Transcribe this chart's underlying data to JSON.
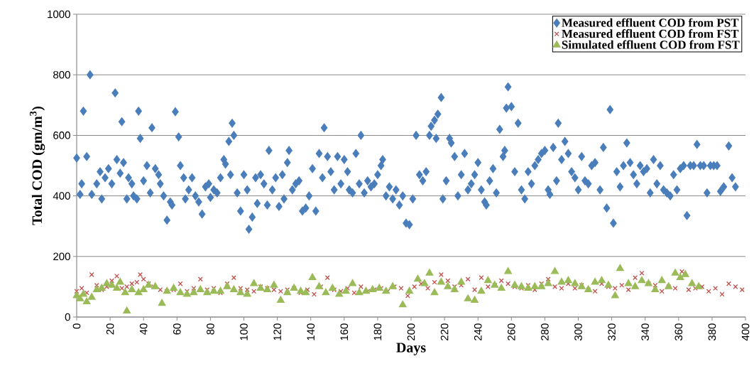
{
  "chart_data": {
    "type": "scatter",
    "xlabel": "Days",
    "ylabel": "Total COD (gm/m$^{3}$)",
    "xlim": [
      0,
      400
    ],
    "xticks": [
      0,
      20,
      40,
      60,
      80,
      100,
      120,
      140,
      160,
      180,
      200,
      220,
      240,
      260,
      280,
      300,
      320,
      340,
      360,
      380,
      400
    ],
    "ylim": [
      0,
      1000
    ],
    "yticks": [
      0,
      200,
      400,
      600,
      800,
      1000
    ],
    "grid": "y",
    "legend": "top right",
    "series": [
      {
        "name": "Measured effluent COD from PST",
        "color": "#4a7ebb",
        "marker": "diamond",
        "x": [
          0,
          2,
          3,
          4,
          6,
          8,
          9,
          12,
          14,
          15,
          17,
          19,
          21,
          23,
          24,
          26,
          27,
          28,
          30,
          31,
          33,
          34,
          36,
          37,
          38,
          40,
          42,
          44,
          45,
          47,
          49,
          50,
          52,
          54,
          56,
          57,
          59,
          61,
          62,
          64,
          65,
          67,
          69,
          71,
          73,
          75,
          77,
          79,
          80,
          82,
          84,
          86,
          88,
          89,
          91,
          92,
          93,
          94,
          96,
          98,
          100,
          102,
          103,
          105,
          107,
          108,
          110,
          112,
          114,
          115,
          117,
          119,
          121,
          123,
          124,
          126,
          127,
          129,
          131,
          133,
          135,
          137,
          139,
          141,
          143,
          145,
          147,
          148,
          150,
          152,
          154,
          156,
          158,
          160,
          162,
          163,
          165,
          167,
          169,
          170,
          172,
          174,
          176,
          178,
          180,
          182,
          183,
          185,
          187,
          189,
          191,
          193,
          195,
          197,
          199,
          201,
          203,
          205,
          207,
          209,
          211,
          212,
          214,
          215,
          216,
          218,
          219,
          221,
          223,
          224,
          226,
          228,
          230,
          232,
          234,
          236,
          238,
          240,
          242,
          244,
          245,
          247,
          249,
          251,
          253,
          255,
          256,
          257,
          258,
          260,
          262,
          264,
          266,
          268,
          270,
          272,
          274,
          276,
          278,
          280,
          282,
          283,
          285,
          287,
          288,
          290,
          292,
          294,
          296,
          298,
          300,
          302,
          304,
          306,
          308,
          310,
          313,
          315,
          317,
          319,
          321,
          323,
          325,
          327,
          329,
          331,
          333,
          335,
          337,
          339,
          341,
          343,
          345,
          347,
          349,
          351,
          353,
          355,
          357,
          359,
          361,
          363,
          365,
          367,
          369,
          371,
          373,
          375,
          377,
          379,
          381,
          383,
          385,
          387,
          390,
          392,
          394
        ],
        "values": [
          525,
          405,
          440,
          680,
          530,
          800,
          405,
          440,
          480,
          390,
          460,
          490,
          440,
          740,
          520,
          475,
          645,
          510,
          390,
          460,
          440,
          400,
          390,
          680,
          590,
          450,
          500,
          410,
          625,
          490,
          470,
          440,
          400,
          320,
          380,
          370,
          678,
          595,
          500,
          460,
          390,
          420,
          460,
          400,
          380,
          340,
          430,
          440,
          395,
          420,
          410,
          460,
          520,
          505,
          580,
          470,
          640,
          600,
          410,
          350,
          470,
          420,
          290,
          330,
          460,
          375,
          470,
          440,
          370,
          550,
          420,
          460,
          365,
          470,
          390,
          510,
          550,
          420,
          440,
          450,
          350,
          360,
          400,
          490,
          350,
          540,
          460,
          625,
          530,
          480,
          420,
          530,
          440,
          520,
          480,
          420,
          410,
          540,
          440,
          600,
          410,
          450,
          430,
          440,
          470,
          500,
          520,
          400,
          430,
          390,
          420,
          370,
          400,
          310,
          305,
          390,
          600,
          470,
          450,
          480,
          600,
          630,
          650,
          590,
          670,
          725,
          390,
          450,
          590,
          575,
          530,
          400,
          470,
          540,
          420,
          440,
          470,
          510,
          420,
          380,
          370,
          450,
          490,
          410,
          620,
          530,
          550,
          690,
          760,
          695,
          480,
          640,
          420,
          390,
          480,
          440,
          500,
          520,
          540,
          550,
          420,
          405,
          560,
          450,
          640,
          520,
          580,
          540,
          480,
          460,
          420,
          530,
          450,
          440,
          500,
          510,
          420,
          560,
          360,
          685,
          310,
          480,
          430,
          500,
          575,
          510,
          470,
          440,
          500,
          480,
          490,
          410,
          520,
          440,
          500,
          420,
          410,
          400,
          470,
          420,
          490,
          500,
          335,
          500,
          500,
          570,
          500,
          500,
          410,
          500,
          500,
          500,
          415,
          430,
          565,
          460,
          430
        ]
      },
      {
        "name": "Measured effluent COD from FST",
        "color": "#c0504d",
        "marker": "cross",
        "x": [
          0,
          3,
          6,
          9,
          12,
          15,
          18,
          21,
          24,
          27,
          30,
          33,
          36,
          38,
          40,
          43,
          46,
          50,
          54,
          58,
          62,
          66,
          70,
          74,
          78,
          82,
          86,
          90,
          94,
          98,
          102,
          106,
          110,
          114,
          118,
          122,
          126,
          130,
          134,
          138,
          142,
          146,
          150,
          154,
          158,
          162,
          166,
          170,
          174,
          178,
          182,
          186,
          190,
          194,
          198,
          202,
          206,
          210,
          214,
          218,
          222,
          226,
          230,
          234,
          238,
          242,
          246,
          250,
          254,
          258,
          262,
          266,
          270,
          274,
          278,
          282,
          286,
          290,
          294,
          298,
          302,
          306,
          310,
          314,
          318,
          322,
          326,
          330,
          334,
          338,
          342,
          346,
          350,
          354,
          358,
          362,
          366,
          370,
          374,
          378,
          382,
          386,
          390,
          394,
          398
        ],
        "values": [
          85,
          95,
          80,
          140,
          105,
          90,
          100,
          120,
          135,
          95,
          100,
          110,
          115,
          140,
          125,
          110,
          100,
          90,
          85,
          90,
          110,
          85,
          95,
          125,
          90,
          95,
          80,
          110,
          130,
          95,
          90,
          85,
          100,
          95,
          90,
          85,
          90,
          95,
          80,
          90,
          75,
          100,
          130,
          90,
          85,
          95,
          80,
          100,
          85,
          90,
          95,
          85,
          100,
          95,
          70,
          100,
          110,
          95,
          115,
          140,
          120,
          100,
          105,
          125,
          90,
          130,
          100,
          105,
          120,
          110,
          100,
          95,
          105,
          90,
          110,
          125,
          100,
          95,
          110,
          95,
          105,
          90,
          85,
          110,
          100,
          95,
          105,
          90,
          130,
          145,
          110,
          105,
          85,
          100,
          95,
          150,
          90,
          95,
          100,
          85,
          95,
          75,
          110,
          100,
          90
        ]
      },
      {
        "name": "Simulated effluent COD from FST",
        "color": "#9bbb59",
        "marker": "triangle",
        "x": [
          0,
          2,
          4,
          6,
          9,
          12,
          15,
          18,
          21,
          24,
          26,
          29,
          30,
          33,
          37,
          40,
          43,
          47,
          51,
          54,
          58,
          62,
          66,
          70,
          74,
          78,
          82,
          86,
          90,
          94,
          98,
          102,
          106,
          110,
          114,
          118,
          122,
          126,
          130,
          134,
          137,
          141,
          145,
          149,
          153,
          157,
          161,
          165,
          169,
          173,
          177,
          181,
          185,
          189,
          195,
          199,
          204,
          208,
          211,
          214,
          218,
          222,
          226,
          230,
          234,
          238,
          242,
          246,
          250,
          254,
          258,
          262,
          266,
          270,
          274,
          278,
          282,
          286,
          290,
          294,
          298,
          302,
          306,
          310,
          314,
          318,
          322,
          325,
          330,
          334,
          338,
          342,
          346,
          350,
          354,
          358,
          361,
          364,
          368,
          372
        ],
        "values": [
          70,
          60,
          75,
          50,
          65,
          90,
          95,
          110,
          105,
          95,
          115,
          80,
          20,
          90,
          80,
          90,
          105,
          100,
          45,
          85,
          95,
          80,
          75,
          80,
          90,
          80,
          85,
          85,
          100,
          90,
          80,
          75,
          110,
          95,
          90,
          105,
          55,
          80,
          95,
          85,
          80,
          130,
          100,
          80,
          95,
          75,
          85,
          110,
          80,
          85,
          90,
          95,
          85,
          100,
          40,
          85,
          125,
          110,
          145,
          80,
          115,
          100,
          90,
          115,
          60,
          55,
          85,
          120,
          105,
          95,
          150,
          105,
          100,
          95,
          100,
          100,
          110,
          150,
          115,
          120,
          110,
          100,
          90,
          115,
          120,
          105,
          70,
          160,
          110,
          100,
          120,
          110,
          90,
          120,
          100,
          145,
          130,
          140,
          110,
          100
        ]
      }
    ]
  }
}
